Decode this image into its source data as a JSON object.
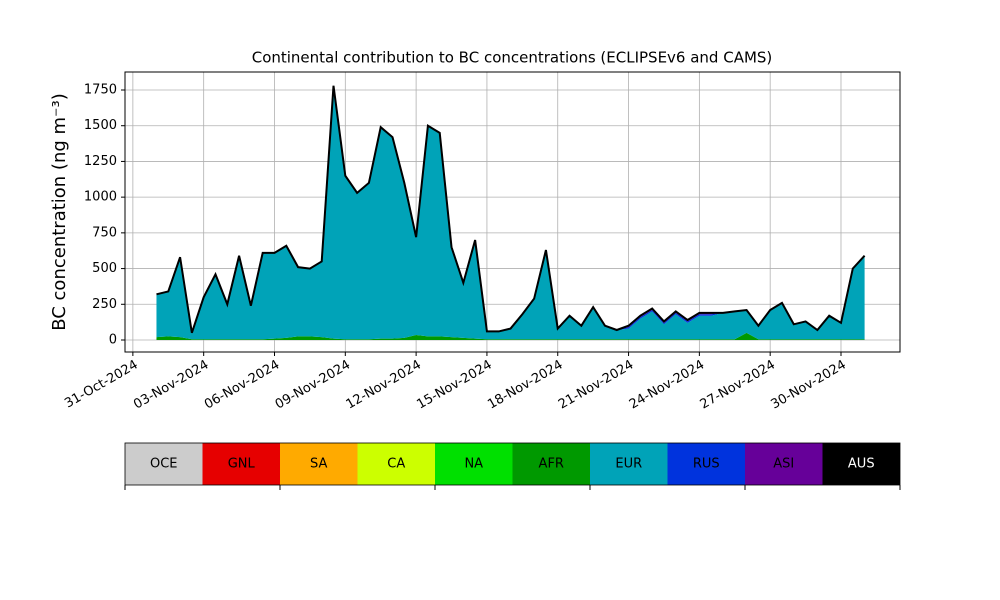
{
  "chart_data": {
    "type": "stacked_area",
    "title": "Continental contribution to BC concentrations (ECLIPSEv6 and CAMS)",
    "y_label": "BC concentration (ng m⁻³)",
    "x": [
      "2024-11-01T00:00",
      "2024-11-01T12:00",
      "2024-11-02T00:00",
      "2024-11-02T12:00",
      "2024-11-03T00:00",
      "2024-11-03T12:00",
      "2024-11-04T00:00",
      "2024-11-04T12:00",
      "2024-11-05T00:00",
      "2024-11-05T12:00",
      "2024-11-06T00:00",
      "2024-11-06T12:00",
      "2024-11-07T00:00",
      "2024-11-07T12:00",
      "2024-11-08T00:00",
      "2024-11-08T12:00",
      "2024-11-09T00:00",
      "2024-11-09T12:00",
      "2024-11-10T00:00",
      "2024-11-10T12:00",
      "2024-11-11T00:00",
      "2024-11-11T12:00",
      "2024-11-12T00:00",
      "2024-11-12T12:00",
      "2024-11-13T00:00",
      "2024-11-13T12:00",
      "2024-11-14T00:00",
      "2024-11-14T12:00",
      "2024-11-15T00:00",
      "2024-11-15T12:00",
      "2024-11-16T00:00",
      "2024-11-16T12:00",
      "2024-11-17T00:00",
      "2024-11-17T12:00",
      "2024-11-18T00:00",
      "2024-11-18T12:00",
      "2024-11-19T00:00",
      "2024-11-19T12:00",
      "2024-11-20T00:00",
      "2024-11-20T12:00",
      "2024-11-21T00:00",
      "2024-11-21T12:00",
      "2024-11-22T00:00",
      "2024-11-22T12:00",
      "2024-11-23T00:00",
      "2024-11-23T12:00",
      "2024-11-24T00:00",
      "2024-11-24T12:00",
      "2024-11-25T00:00",
      "2024-11-25T12:00",
      "2024-11-26T00:00",
      "2024-11-26T12:00",
      "2024-11-27T00:00",
      "2024-11-27T12:00",
      "2024-11-28T00:00",
      "2024-11-28T12:00",
      "2024-11-29T00:00",
      "2024-11-29T12:00",
      "2024-11-30T00:00",
      "2024-11-30T12:00",
      "2024-12-01T00:00"
    ],
    "series": [
      {
        "name": "OCE",
        "color": "#cccccc",
        "values": [
          0,
          0,
          0,
          0,
          0,
          0,
          0,
          0,
          0,
          0,
          0,
          0,
          0,
          0,
          0,
          0,
          0,
          0,
          0,
          0,
          0,
          0,
          0,
          0,
          0,
          0,
          0,
          0,
          0,
          0,
          0,
          0,
          0,
          0,
          0,
          0,
          0,
          0,
          0,
          0,
          0,
          0,
          0,
          0,
          0,
          0,
          0,
          0,
          0,
          0,
          0,
          0,
          0,
          0,
          0,
          0,
          0,
          0,
          0,
          0,
          0
        ]
      },
      {
        "name": "GNL",
        "color": "#e60000",
        "values": [
          0,
          0,
          0,
          0,
          0,
          0,
          0,
          0,
          0,
          0,
          0,
          0,
          0,
          0,
          0,
          0,
          0,
          0,
          0,
          0,
          0,
          0,
          0,
          0,
          0,
          0,
          0,
          0,
          0,
          0,
          0,
          0,
          0,
          0,
          0,
          0,
          0,
          0,
          0,
          0,
          0,
          0,
          0,
          0,
          0,
          0,
          0,
          0,
          0,
          0,
          0,
          0,
          0,
          0,
          0,
          0,
          0,
          0,
          0,
          0,
          0
        ]
      },
      {
        "name": "SA",
        "color": "#ffaa00",
        "values": [
          0,
          0,
          0,
          0,
          0,
          0,
          0,
          0,
          0,
          0,
          0,
          0,
          0,
          0,
          0,
          0,
          0,
          0,
          0,
          0,
          0,
          0,
          0,
          0,
          0,
          0,
          0,
          0,
          0,
          0,
          0,
          0,
          0,
          0,
          0,
          0,
          0,
          0,
          0,
          0,
          0,
          0,
          0,
          0,
          0,
          0,
          0,
          0,
          0,
          0,
          0,
          0,
          0,
          0,
          0,
          0,
          0,
          0,
          0,
          0,
          0
        ]
      },
      {
        "name": "CA",
        "color": "#ccff00",
        "values": [
          0,
          0,
          0,
          0,
          0,
          0,
          0,
          0,
          0,
          0,
          0,
          0,
          0,
          0,
          0,
          0,
          0,
          0,
          0,
          0,
          0,
          0,
          0,
          0,
          0,
          0,
          0,
          0,
          0,
          0,
          0,
          0,
          0,
          0,
          0,
          0,
          0,
          0,
          0,
          0,
          0,
          0,
          0,
          0,
          0,
          0,
          0,
          0,
          0,
          0,
          0,
          0,
          0,
          0,
          0,
          0,
          0,
          0,
          0,
          0,
          0
        ]
      },
      {
        "name": "NA",
        "color": "#00e000",
        "values": [
          0,
          0,
          0,
          0,
          0,
          0,
          0,
          0,
          0,
          0,
          0,
          0,
          0,
          0,
          0,
          0,
          0,
          0,
          0,
          0,
          0,
          0,
          0,
          0,
          0,
          0,
          0,
          0,
          0,
          0,
          0,
          0,
          0,
          0,
          0,
          0,
          0,
          0,
          0,
          0,
          0,
          0,
          0,
          0,
          0,
          0,
          0,
          0,
          0,
          0,
          0,
          0,
          0,
          0,
          0,
          0,
          0,
          0,
          0,
          0,
          0
        ]
      },
      {
        "name": "AFR",
        "color": "#009900",
        "values": [
          20,
          25,
          20,
          5,
          5,
          5,
          5,
          5,
          5,
          5,
          10,
          15,
          25,
          25,
          20,
          10,
          5,
          5,
          5,
          10,
          10,
          15,
          35,
          25,
          25,
          20,
          15,
          10,
          5,
          5,
          5,
          5,
          5,
          5,
          5,
          5,
          5,
          5,
          5,
          5,
          5,
          5,
          5,
          5,
          5,
          5,
          5,
          5,
          5,
          5,
          50,
          5,
          5,
          5,
          5,
          5,
          5,
          5,
          5,
          5,
          5
        ]
      },
      {
        "name": "EUR",
        "color": "#00a3b8",
        "values": [
          300,
          315,
          560,
          45,
          295,
          455,
          245,
          585,
          235,
          605,
          600,
          645,
          485,
          475,
          530,
          1770,
          1145,
          1025,
          1095,
          1480,
          1410,
          1085,
          685,
          1475,
          1425,
          630,
          385,
          690,
          55,
          55,
          75,
          175,
          285,
          625,
          75,
          165,
          95,
          225,
          95,
          65,
          75,
          145,
          195,
          105,
          175,
          115,
          165,
          165,
          185,
          195,
          160,
          95,
          205,
          255,
          105,
          125,
          65,
          165,
          115,
          495,
          585
        ]
      },
      {
        "name": "RUS",
        "color": "#0033dd",
        "values": [
          0,
          0,
          0,
          0,
          0,
          0,
          0,
          0,
          0,
          0,
          0,
          0,
          0,
          0,
          0,
          0,
          0,
          0,
          0,
          0,
          0,
          0,
          0,
          0,
          0,
          0,
          0,
          0,
          0,
          0,
          0,
          0,
          0,
          0,
          0,
          0,
          0,
          0,
          0,
          0,
          10,
          10,
          10,
          10,
          10,
          10,
          10,
          10,
          0,
          0,
          0,
          0,
          0,
          0,
          0,
          0,
          0,
          0,
          0,
          0,
          0
        ]
      },
      {
        "name": "ASI",
        "color": "#660099",
        "values": [
          0,
          0,
          0,
          0,
          0,
          0,
          0,
          0,
          0,
          0,
          0,
          0,
          0,
          0,
          0,
          0,
          0,
          0,
          0,
          0,
          0,
          0,
          0,
          0,
          0,
          0,
          0,
          0,
          0,
          0,
          0,
          0,
          0,
          0,
          0,
          0,
          0,
          0,
          0,
          0,
          10,
          10,
          10,
          10,
          10,
          10,
          10,
          10,
          0,
          0,
          0,
          0,
          0,
          0,
          0,
          0,
          0,
          0,
          0,
          0,
          0
        ]
      },
      {
        "name": "AUS",
        "color": "#000000",
        "values": [
          0,
          0,
          0,
          0,
          0,
          0,
          0,
          0,
          0,
          0,
          0,
          0,
          0,
          0,
          0,
          0,
          0,
          0,
          0,
          0,
          0,
          0,
          0,
          0,
          0,
          0,
          0,
          0,
          0,
          0,
          0,
          0,
          0,
          0,
          0,
          0,
          0,
          0,
          0,
          0,
          0,
          0,
          0,
          0,
          0,
          0,
          0,
          0,
          0,
          0,
          0,
          0,
          0,
          0,
          0,
          0,
          0,
          0,
          0,
          0,
          0
        ]
      }
    ],
    "xlim": [
      "2024-10-30T16:00",
      "2024-12-02T12:00"
    ],
    "xticks": [
      {
        "value": "2024-10-31",
        "label": "31-Oct-2024"
      },
      {
        "value": "2024-11-03",
        "label": "03-Nov-2024"
      },
      {
        "value": "2024-11-06",
        "label": "06-Nov-2024"
      },
      {
        "value": "2024-11-09",
        "label": "09-Nov-2024"
      },
      {
        "value": "2024-11-12",
        "label": "12-Nov-2024"
      },
      {
        "value": "2024-11-15",
        "label": "15-Nov-2024"
      },
      {
        "value": "2024-11-18",
        "label": "18-Nov-2024"
      },
      {
        "value": "2024-11-21",
        "label": "21-Nov-2024"
      },
      {
        "value": "2024-11-24",
        "label": "24-Nov-2024"
      },
      {
        "value": "2024-11-27",
        "label": "27-Nov-2024"
      },
      {
        "value": "2024-11-30",
        "label": "30-Nov-2024"
      }
    ],
    "ylim": [
      -84,
      1876
    ],
    "yticks": [
      0,
      250,
      500,
      750,
      1000,
      1250,
      1500,
      1750
    ],
    "grid": true
  }
}
